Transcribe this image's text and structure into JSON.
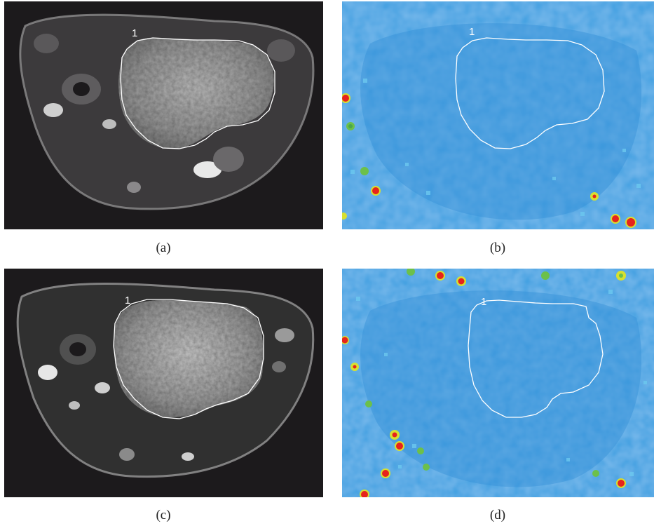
{
  "panels": [
    {
      "id": "a",
      "caption": "(a)",
      "roi_label": "1",
      "image": "mri-axial-slice-grayscale"
    },
    {
      "id": "b",
      "caption": "(b)",
      "roi_label": "1",
      "image": "parametric-map-colormap"
    },
    {
      "id": "c",
      "caption": "(c)",
      "roi_label": "1",
      "image": "mri-axial-slice-grayscale"
    },
    {
      "id": "d",
      "caption": "(d)",
      "roi_label": "1",
      "image": "parametric-map-colormap"
    }
  ],
  "colors": {
    "mri_background": "#1c1a1c",
    "map_background": "#3a9ee0",
    "hotspot_red": "#e6231c",
    "hotspot_yellow": "#d8e030",
    "hotspot_green": "#6cc04a",
    "roi_outline": "#ffffff",
    "page_background": "#ffffff"
  }
}
